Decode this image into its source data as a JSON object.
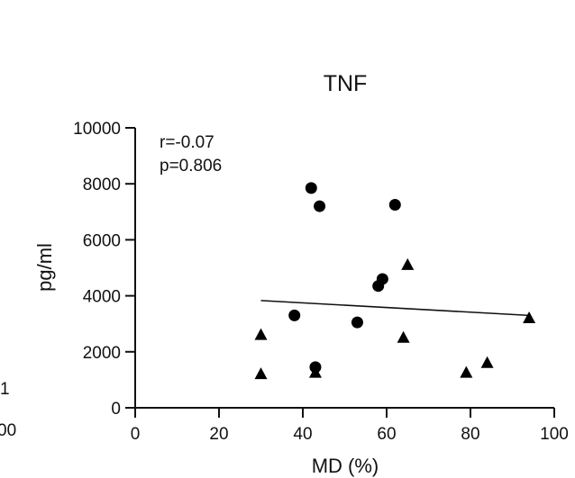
{
  "chart_data": {
    "type": "scatter",
    "title": "TNF",
    "xlabel": "MD (%)",
    "ylabel": "pg/ml",
    "xlim": [
      0,
      100
    ],
    "ylim": [
      0,
      10000
    ],
    "x_ticks": [
      "0",
      "20",
      "40",
      "60",
      "80",
      "100"
    ],
    "y_ticks": [
      "0",
      "2000",
      "4000",
      "6000",
      "8000",
      "10000"
    ],
    "grid": false,
    "legend": "none",
    "annotations": [
      "r=-0.07",
      "p=0.806"
    ],
    "series": [
      {
        "marker": "circle",
        "color": "#000000",
        "points": [
          {
            "x": 38,
            "y": 3300
          },
          {
            "x": 42,
            "y": 7850
          },
          {
            "x": 43,
            "y": 1450
          },
          {
            "x": 44,
            "y": 7200
          },
          {
            "x": 53,
            "y": 3050
          },
          {
            "x": 58,
            "y": 4350
          },
          {
            "x": 59,
            "y": 4600
          },
          {
            "x": 62,
            "y": 7250
          }
        ]
      },
      {
        "marker": "triangle",
        "color": "#000000",
        "points": [
          {
            "x": 30,
            "y": 1200
          },
          {
            "x": 30,
            "y": 2600
          },
          {
            "x": 43,
            "y": 1250
          },
          {
            "x": 64,
            "y": 2500
          },
          {
            "x": 65,
            "y": 5100
          },
          {
            "x": 79,
            "y": 1250
          },
          {
            "x": 84,
            "y": 1600
          },
          {
            "x": 94,
            "y": 3200
          }
        ]
      }
    ],
    "regression_line": {
      "x": [
        30,
        94
      ],
      "y": [
        3830,
        3300
      ]
    },
    "clipped_left_fragment": [
      "1",
      "00"
    ]
  }
}
